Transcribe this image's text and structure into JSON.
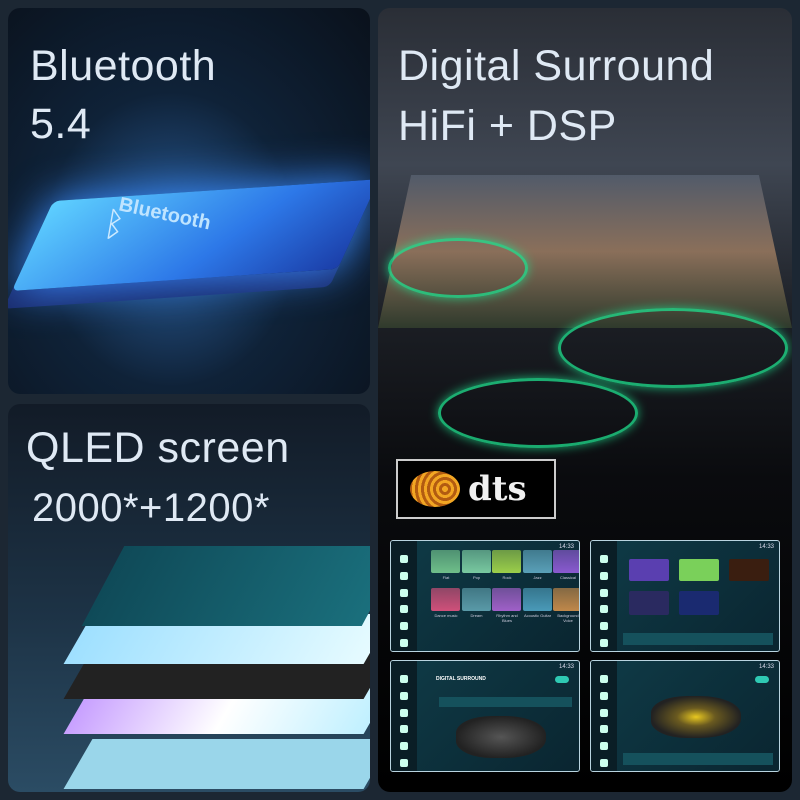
{
  "panels": {
    "bluetooth": {
      "title_line1": "Bluetooth",
      "title_line2": "5.4",
      "chip_label": "Bluetooth"
    },
    "qled": {
      "title_line1": "QLED screen",
      "title_line2": "2000*+1200*"
    },
    "surround": {
      "title_line1": "Digital Surround",
      "title_line2": "HiFi + DSP",
      "logo": "dts"
    }
  },
  "screens": {
    "clock": "14:33",
    "eq_presets": [
      "Flat",
      "Pop",
      "Rock",
      "Jazz",
      "Classical",
      "Dance music",
      "Dream",
      "Rhythm and Blues",
      "Acoustic Guitar",
      "Background Voice"
    ],
    "eq_colors": [
      "#6fbf8a",
      "#79c9a0",
      "#9ccf4a",
      "#5aa0b8",
      "#8a5ad0",
      "#d0507a",
      "#5a9aa8",
      "#a060c8",
      "#4a9ab8",
      "#c0884a"
    ],
    "dts_title": "DIGITAL SURROUND",
    "accent": "#1fe08e"
  }
}
